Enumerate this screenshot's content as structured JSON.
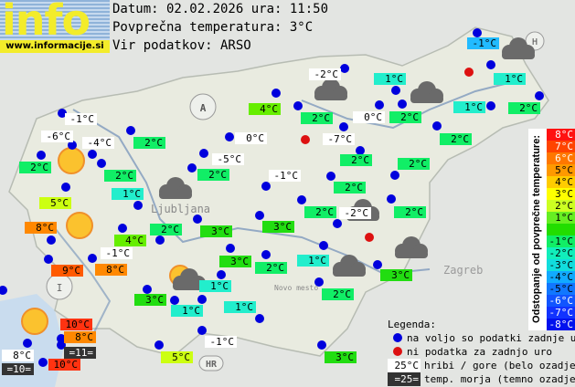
{
  "logo": {
    "word": "info",
    "url": "www.informacije.si"
  },
  "header": {
    "date_line": "Datum: 02.02.2026 ura: 11:50",
    "avg_line": "Povprečna temperatura: 3°C",
    "source_line": "Vir podatkov: ARSO"
  },
  "colors": {
    "station_ok": "#0000dd",
    "station_missing": "#dd1111",
    "mountain_bg": "#ffffff",
    "sea_bg": "#333333"
  },
  "map_labels": [
    "A",
    "HR",
    "H",
    "Ljubljana",
    "Zagreb",
    "Novo mesto"
  ],
  "stations": [
    {
      "temp": "-1°C",
      "bg": "mountain"
    },
    {
      "temp": "-6°C",
      "bg": "mountain"
    },
    {
      "temp": "-4°C",
      "bg": "mountain"
    },
    {
      "temp": "2°C",
      "bg": "#11ee66"
    },
    {
      "temp": "2°C",
      "bg": "#11ee66"
    },
    {
      "temp": "2°C",
      "bg": "#11ee66"
    },
    {
      "temp": "1°C",
      "bg": "#22eecc"
    },
    {
      "temp": "5°C",
      "bg": "#ccff11"
    },
    {
      "temp": "8°C",
      "bg": "#ff8800"
    },
    {
      "temp": "4°C",
      "bg": "#66ee00"
    },
    {
      "temp": "2°C",
      "bg": "#11ee66"
    },
    {
      "temp": "-1°C",
      "bg": "mountain"
    },
    {
      "temp": "9°C",
      "bg": "#ff5a00"
    },
    {
      "temp": "8°C",
      "bg": "#ff8800"
    },
    {
      "temp": "3°C",
      "bg": "#22dd11"
    },
    {
      "temp": "1°C",
      "bg": "#22eecc"
    },
    {
      "temp": "1°C",
      "bg": "#22eecc"
    },
    {
      "temp": "1°C",
      "bg": "#22eecc"
    },
    {
      "temp": "10°C",
      "bg": "#ff3311"
    },
    {
      "temp": "8°C",
      "bg": "#ff8800"
    },
    {
      "temp": "=11=",
      "bg": "sea"
    },
    {
      "temp": "8°C",
      "bg": "mountain"
    },
    {
      "temp": "=10=",
      "bg": "sea"
    },
    {
      "temp": "10°C",
      "bg": "#ff3311"
    },
    {
      "temp": "5°C",
      "bg": "#ccff11"
    },
    {
      "temp": "-1°C",
      "bg": "mountain"
    },
    {
      "temp": "3°C",
      "bg": "#22dd11"
    },
    {
      "temp": "4°C",
      "bg": "#66ee00"
    },
    {
      "temp": "2°C",
      "bg": "#11ee66"
    },
    {
      "temp": "-2°C",
      "bg": "mountain"
    },
    {
      "temp": "1°C",
      "bg": "#22eecc"
    },
    {
      "temp": "0°C",
      "bg": "mountain"
    },
    {
      "temp": "2°C",
      "bg": "#11ee66"
    },
    {
      "temp": "0°C",
      "bg": "mountain"
    },
    {
      "temp": "-7°C",
      "bg": "mountain"
    },
    {
      "temp": "-5°C",
      "bg": "mountain"
    },
    {
      "temp": "2°C",
      "bg": "#11ee66"
    },
    {
      "temp": "2°C",
      "bg": "#11ee66"
    },
    {
      "temp": "2°C",
      "bg": "#11ee66"
    },
    {
      "temp": "-1°C",
      "bg": "mountain"
    },
    {
      "temp": "2°C",
      "bg": "#11ee66"
    },
    {
      "temp": "2°C",
      "bg": "#11ee66"
    },
    {
      "temp": "1°C",
      "bg": "#22eecc"
    },
    {
      "temp": "2°C",
      "bg": "#11ee66"
    },
    {
      "temp": "1°C",
      "bg": "#22eecc"
    },
    {
      "temp": "-1°C",
      "bg": "#22bbff"
    },
    {
      "temp": "2°C",
      "bg": "#11ee66"
    },
    {
      "temp": "-2°C",
      "bg": "mountain"
    },
    {
      "temp": "2°C",
      "bg": "#11ee66"
    },
    {
      "temp": "3°C",
      "bg": "#22dd11"
    },
    {
      "temp": "3°C",
      "bg": "#22dd11"
    },
    {
      "temp": "3°C",
      "bg": "#22dd11"
    },
    {
      "temp": "2°C",
      "bg": "#11ee66"
    },
    {
      "temp": "1°C",
      "bg": "#22eecc"
    },
    {
      "temp": "3°C",
      "bg": "#22dd11"
    },
    {
      "temp": "2°C",
      "bg": "#11ee66"
    }
  ],
  "weather_icons": [
    "sun",
    "sun",
    "sun",
    "sun-cloud",
    "cloud",
    "cloud",
    "cloud",
    "cloud",
    "cloud",
    "cloud",
    "cloud"
  ],
  "scale": {
    "title": "Odstopanje od povprečne temperature:",
    "rows": [
      {
        "label": "8°C",
        "color": "#ff1111",
        "text": "#ffffff"
      },
      {
        "label": "7°C",
        "color": "#ff4400",
        "text": "#ffffff"
      },
      {
        "label": "6°C",
        "color": "#ff7700",
        "text": "#ffffff"
      },
      {
        "label": "5°C",
        "color": "#ff9900",
        "text": "#000000"
      },
      {
        "label": "4°C",
        "color": "#ffcc00",
        "text": "#000000"
      },
      {
        "label": "3°C",
        "color": "#ffff00",
        "text": "#000000"
      },
      {
        "label": "2°C",
        "color": "#ccff22",
        "text": "#000000"
      },
      {
        "label": "1°C",
        "color": "#66ee22",
        "text": "#000000"
      },
      {
        "label": "",
        "color": "#22dd00",
        "text": "#000000"
      },
      {
        "label": "-1°C",
        "color": "#11ee66",
        "text": "#000000"
      },
      {
        "label": "-2°C",
        "color": "#11eebb",
        "text": "#000000"
      },
      {
        "label": "-3°C",
        "color": "#11dddd",
        "text": "#000000"
      },
      {
        "label": "-4°C",
        "color": "#11aaff",
        "text": "#000000"
      },
      {
        "label": "-5°C",
        "color": "#1177ff",
        "text": "#000000"
      },
      {
        "label": "-6°C",
        "color": "#1155ff",
        "text": "#ffffff"
      },
      {
        "label": "-7°C",
        "color": "#1133ff",
        "text": "#ffffff"
      },
      {
        "label": "-8°C",
        "color": "#0011ee",
        "text": "#ffffff"
      }
    ]
  },
  "legend": {
    "title": "Legenda:",
    "ok": "na voljo so podatki zadnje ure",
    "missing": "ni podatka za zadnjo uro",
    "mountain_sample": "25°C",
    "mountain_text": "hribi / gore (belo ozadje)",
    "sea_sample": "=25=",
    "sea_text": "temp. morja (temno ozadje)"
  }
}
